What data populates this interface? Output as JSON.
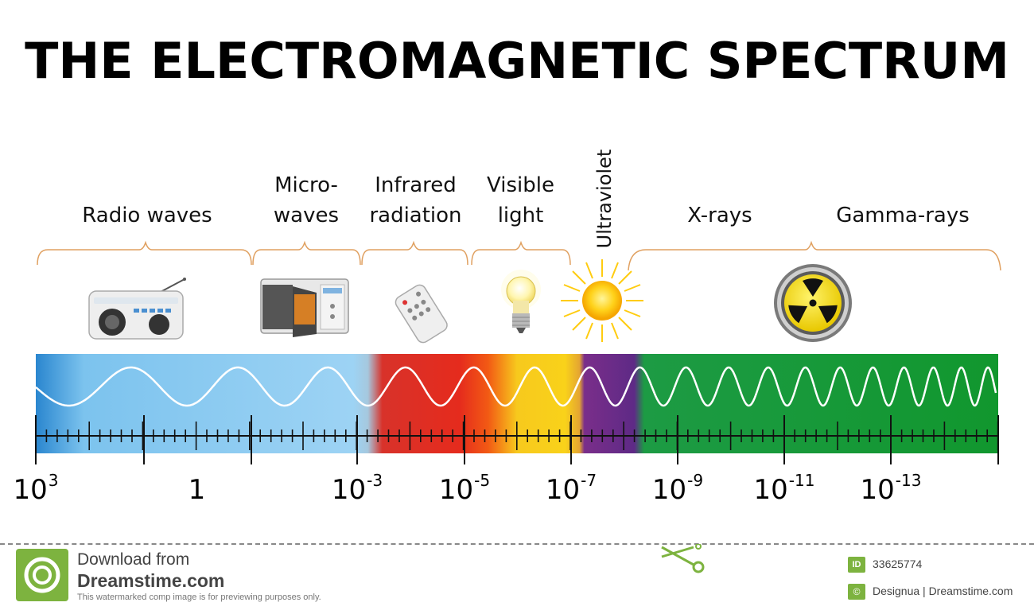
{
  "title": "THE ELECTROMAGNETIC SPECTRUM",
  "regions": {
    "radio": "Radio waves",
    "micro_line1": "Micro-",
    "micro_line2": "waves",
    "infrared_line1": "Infrared",
    "infrared_line2": "radiation",
    "visible_line1": "Visible",
    "visible_line2": "light",
    "ultraviolet": "Ultraviolet",
    "xrays": "X-rays",
    "gamma": "Gamma-rays"
  },
  "scale": {
    "labels": [
      {
        "base": "10",
        "exp": "3"
      },
      {
        "base": "1",
        "exp": ""
      },
      {
        "base": "10",
        "exp": "-3"
      },
      {
        "base": "10",
        "exp": "-5"
      },
      {
        "base": "10",
        "exp": "-7"
      },
      {
        "base": "10",
        "exp": "-9"
      },
      {
        "base": "10",
        "exp": "-11"
      },
      {
        "base": "10",
        "exp": "-13"
      }
    ]
  },
  "icons": {
    "radio": "radio-icon",
    "microwave": "microwave-oven-icon",
    "remote": "remote-control-icon",
    "bulb": "light-bulb-icon",
    "sun": "sun-icon",
    "radiation": "radiation-symbol-icon"
  },
  "colors": {
    "radio_band": "#8ccaf0",
    "infrared_band": "#e02a1f",
    "visible_band": "#f7c81a",
    "uv_band": "#6a2a8c",
    "xray_band": "#1aa23a",
    "brace": "#e0a060"
  },
  "footer": {
    "download_line1": "Download from",
    "download_line2": "Dreamstime.com",
    "disclaimer": "This watermarked comp image is for previewing purposes only.",
    "id_badge": "ID",
    "id_number": "33625774",
    "copyright_badge": "©",
    "credit": "Designua | Dreamstime.com"
  }
}
